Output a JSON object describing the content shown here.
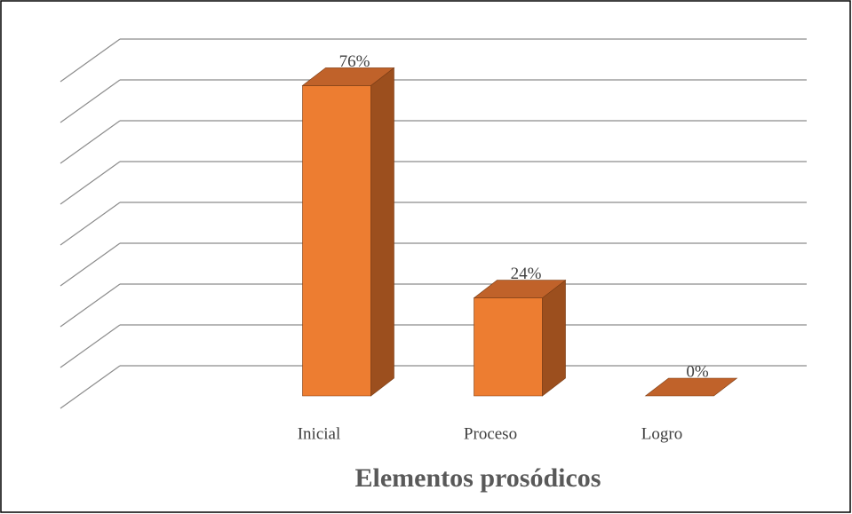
{
  "chart_data": {
    "type": "bar3d",
    "title": "Elementos prosódicos",
    "categories": [
      "Inicial",
      "Proceso",
      "Logro"
    ],
    "values": [
      76,
      24,
      0
    ],
    "value_labels": [
      "76%",
      "24%",
      "0%"
    ],
    "color": "#ed7d31",
    "ylim": [
      0,
      80
    ],
    "yticks": [
      0,
      10,
      20,
      30,
      40,
      50,
      60,
      70,
      80
    ],
    "grid": true
  }
}
